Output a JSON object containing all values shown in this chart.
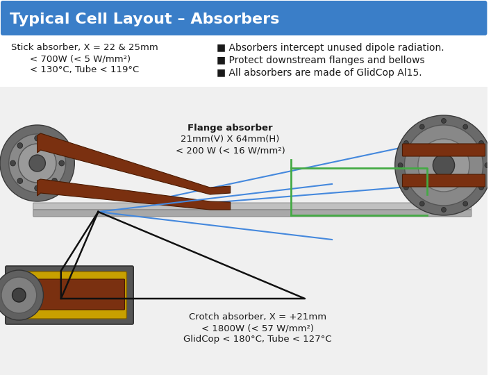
{
  "title": "Typical Cell Layout – Absorbers",
  "title_bg_color": "#3a7ec8",
  "title_text_color": "#ffffff",
  "title_fontsize": 16,
  "bg_color": "#ffffff",
  "left_label_line1": "Stick absorber, X = 22 & 25mm",
  "left_label_line2": "< 700W (< 5 W/mm²)",
  "left_label_line3": "< 130°C, Tube < 119°C",
  "bullet1": "■ Absorbers intercept unused dipole radiation.",
  "bullet2": "■ Protect downstream flanges and bellows",
  "bullet3": "■ All absorbers are made of GlidCop Al15.",
  "flange_label_line1": "Flange absorber",
  "flange_label_line2": "21mm(V) X 64mm(H)",
  "flange_label_line3": "< 200 W (< 16 W/mm²)",
  "crotch_label_line1": "Crotch absorber, X = +21mm",
  "crotch_label_line2": "< 1800W (< 57 W/mm²)",
  "crotch_label_line3": "GlidCop < 180°C, Tube < 127°C",
  "text_color": "#1a1a1a",
  "label_fontsize": 9.5,
  "bullet_fontsize": 10
}
